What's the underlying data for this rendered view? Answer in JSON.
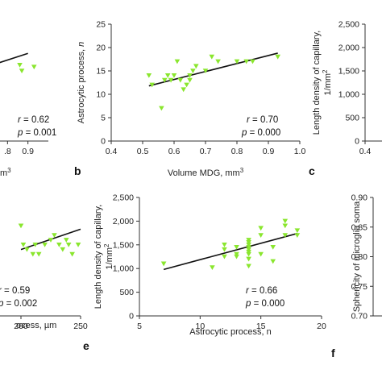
{
  "chart_data": [
    {
      "panel": "",
      "type": "scatter",
      "xlim": [
        0.4,
        1.0
      ],
      "ylim": [
        0,
        30
      ],
      "xticks": [
        {
          "v": 0.8,
          "label": ".8"
        },
        {
          "v": 0.9,
          "label": "0.9"
        }
      ],
      "yticks": [],
      "xlabel": "m3",
      "ylabel": "",
      "points": [
        [
          0.86,
          19.5
        ],
        [
          0.87,
          18
        ],
        [
          0.93,
          19
        ]
      ],
      "fit": [
        [
          0.4,
          14
        ],
        [
          0.9,
          22.5
        ]
      ],
      "stats": {
        "r": "0.62",
        "p": "0.001"
      }
    },
    {
      "panel": "b",
      "type": "scatter",
      "xlim": [
        0.4,
        1.0
      ],
      "ylim": [
        0,
        25
      ],
      "xticks": [
        {
          "v": 0.4,
          "label": "0.4"
        },
        {
          "v": 0.5,
          "label": "0.5"
        },
        {
          "v": 0.6,
          "label": "0.6"
        },
        {
          "v": 0.7,
          "label": "0.7"
        },
        {
          "v": 0.8,
          "label": "0.8"
        },
        {
          "v": 0.9,
          "label": "0.9"
        },
        {
          "v": 1.0,
          "label": "1.0"
        }
      ],
      "yticks": [
        {
          "v": 0,
          "label": "0"
        },
        {
          "v": 5,
          "label": "5"
        },
        {
          "v": 10,
          "label": "10"
        },
        {
          "v": 15,
          "label": "15"
        },
        {
          "v": 20,
          "label": "20"
        },
        {
          "v": 25,
          "label": "25"
        }
      ],
      "xlabel": "Volume MDG, mm3",
      "ylabel": "Astrocytic process, n",
      "points": [
        [
          0.52,
          14
        ],
        [
          0.53,
          12
        ],
        [
          0.56,
          7
        ],
        [
          0.57,
          13
        ],
        [
          0.58,
          14
        ],
        [
          0.59,
          13
        ],
        [
          0.6,
          14
        ],
        [
          0.61,
          17
        ],
        [
          0.62,
          13
        ],
        [
          0.63,
          11
        ],
        [
          0.64,
          12
        ],
        [
          0.65,
          13
        ],
        [
          0.65,
          14
        ],
        [
          0.66,
          15
        ],
        [
          0.67,
          16
        ],
        [
          0.7,
          15
        ],
        [
          0.72,
          18
        ],
        [
          0.74,
          17
        ],
        [
          0.8,
          17
        ],
        [
          0.83,
          17
        ],
        [
          0.85,
          17
        ],
        [
          0.93,
          18
        ]
      ],
      "fit": [
        [
          0.52,
          11.8
        ],
        [
          0.93,
          18.8
        ]
      ],
      "stats": {
        "r": "0.70",
        "p": "0.000"
      }
    },
    {
      "panel": "c",
      "type": "scatter",
      "xlim": [
        0.4,
        1.0
      ],
      "ylim": [
        0,
        2500
      ],
      "xticks": [
        {
          "v": 0.4,
          "label": "0.4"
        }
      ],
      "yticks": [
        {
          "v": 0,
          "label": "0"
        },
        {
          "v": 500,
          "label": "500"
        },
        {
          "v": 1000,
          "label": "1,000"
        },
        {
          "v": 1500,
          "label": "1,500"
        },
        {
          "v": 2000,
          "label": "2,000"
        },
        {
          "v": 2500,
          "label": "2,500"
        }
      ],
      "xlabel": "",
      "ylabel": "Length density of capillary, 1/mm2",
      "points": [],
      "fit": [],
      "stats": null
    },
    {
      "panel": "",
      "type": "scatter",
      "xlim": [
        0,
        250
      ],
      "ylim": [
        0,
        25
      ],
      "xticks": [
        {
          "v": 200,
          "label": "200"
        },
        {
          "v": 250,
          "label": "250"
        }
      ],
      "yticks": [],
      "xlabel": "ocess, µm",
      "ylabel": "",
      "points": [
        [
          200,
          19
        ],
        [
          202,
          15
        ],
        [
          205,
          14
        ],
        [
          210,
          13
        ],
        [
          212,
          15
        ],
        [
          215,
          13
        ],
        [
          220,
          15
        ],
        [
          225,
          16
        ],
        [
          228,
          17
        ],
        [
          232,
          15
        ],
        [
          235,
          14
        ],
        [
          238,
          16
        ],
        [
          240,
          15
        ],
        [
          243,
          13
        ],
        [
          248,
          15
        ]
      ],
      "fit": [
        [
          200,
          14
        ],
        [
          250,
          18.3
        ]
      ],
      "stats": {
        "r": "0.59",
        "p": "0.002"
      }
    },
    {
      "panel": "e",
      "type": "scatter",
      "xlim": [
        5,
        20
      ],
      "ylim": [
        0,
        2500
      ],
      "xticks": [
        {
          "v": 5,
          "label": "5"
        },
        {
          "v": 10,
          "label": "10"
        },
        {
          "v": 15,
          "label": "15"
        },
        {
          "v": 20,
          "label": "20"
        }
      ],
      "yticks": [
        {
          "v": 0,
          "label": "0"
        },
        {
          "v": 500,
          "label": "500"
        },
        {
          "v": 1000,
          "label": "1,000"
        },
        {
          "v": 1500,
          "label": "1,500"
        },
        {
          "v": 2000,
          "label": "2,000"
        },
        {
          "v": 2500,
          "label": "2,500"
        }
      ],
      "xlabel": "Astrocytic process, n",
      "ylabel": "Length density of capillary, 1/mm2",
      "points": [
        [
          7,
          1100
        ],
        [
          11,
          1020
        ],
        [
          12,
          1500
        ],
        [
          12,
          1400
        ],
        [
          12,
          1250
        ],
        [
          13,
          1300
        ],
        [
          13,
          1250
        ],
        [
          13,
          1450
        ],
        [
          14,
          1600
        ],
        [
          14,
          1550
        ],
        [
          14,
          1500
        ],
        [
          14,
          1450
        ],
        [
          14,
          1400
        ],
        [
          14,
          1350
        ],
        [
          14,
          1300
        ],
        [
          14,
          1200
        ],
        [
          14,
          1050
        ],
        [
          15,
          1850
        ],
        [
          15,
          1700
        ],
        [
          15,
          1300
        ],
        [
          16,
          1450
        ],
        [
          16,
          1150
        ],
        [
          17,
          2000
        ],
        [
          17,
          1900
        ],
        [
          17,
          1700
        ],
        [
          18,
          1800
        ],
        [
          18,
          1700
        ]
      ],
      "fit": [
        [
          7,
          980
        ],
        [
          18,
          1740
        ]
      ],
      "stats": {
        "r": "0.66",
        "p": "0.000"
      }
    },
    {
      "panel": "f",
      "type": "scatter",
      "xlim": [
        0,
        1
      ],
      "ylim": [
        0.7,
        0.9
      ],
      "xticks": [],
      "yticks": [
        {
          "v": 0.7,
          "label": "0.70"
        },
        {
          "v": 0.75,
          "label": "0.75"
        },
        {
          "v": 0.8,
          "label": "0.80"
        },
        {
          "v": 0.85,
          "label": "0.85"
        },
        {
          "v": 0.9,
          "label": "0.90"
        }
      ],
      "xlabel": "",
      "ylabel": "Sphericity of microglia soma",
      "points": [],
      "fit": [],
      "stats": null
    }
  ]
}
